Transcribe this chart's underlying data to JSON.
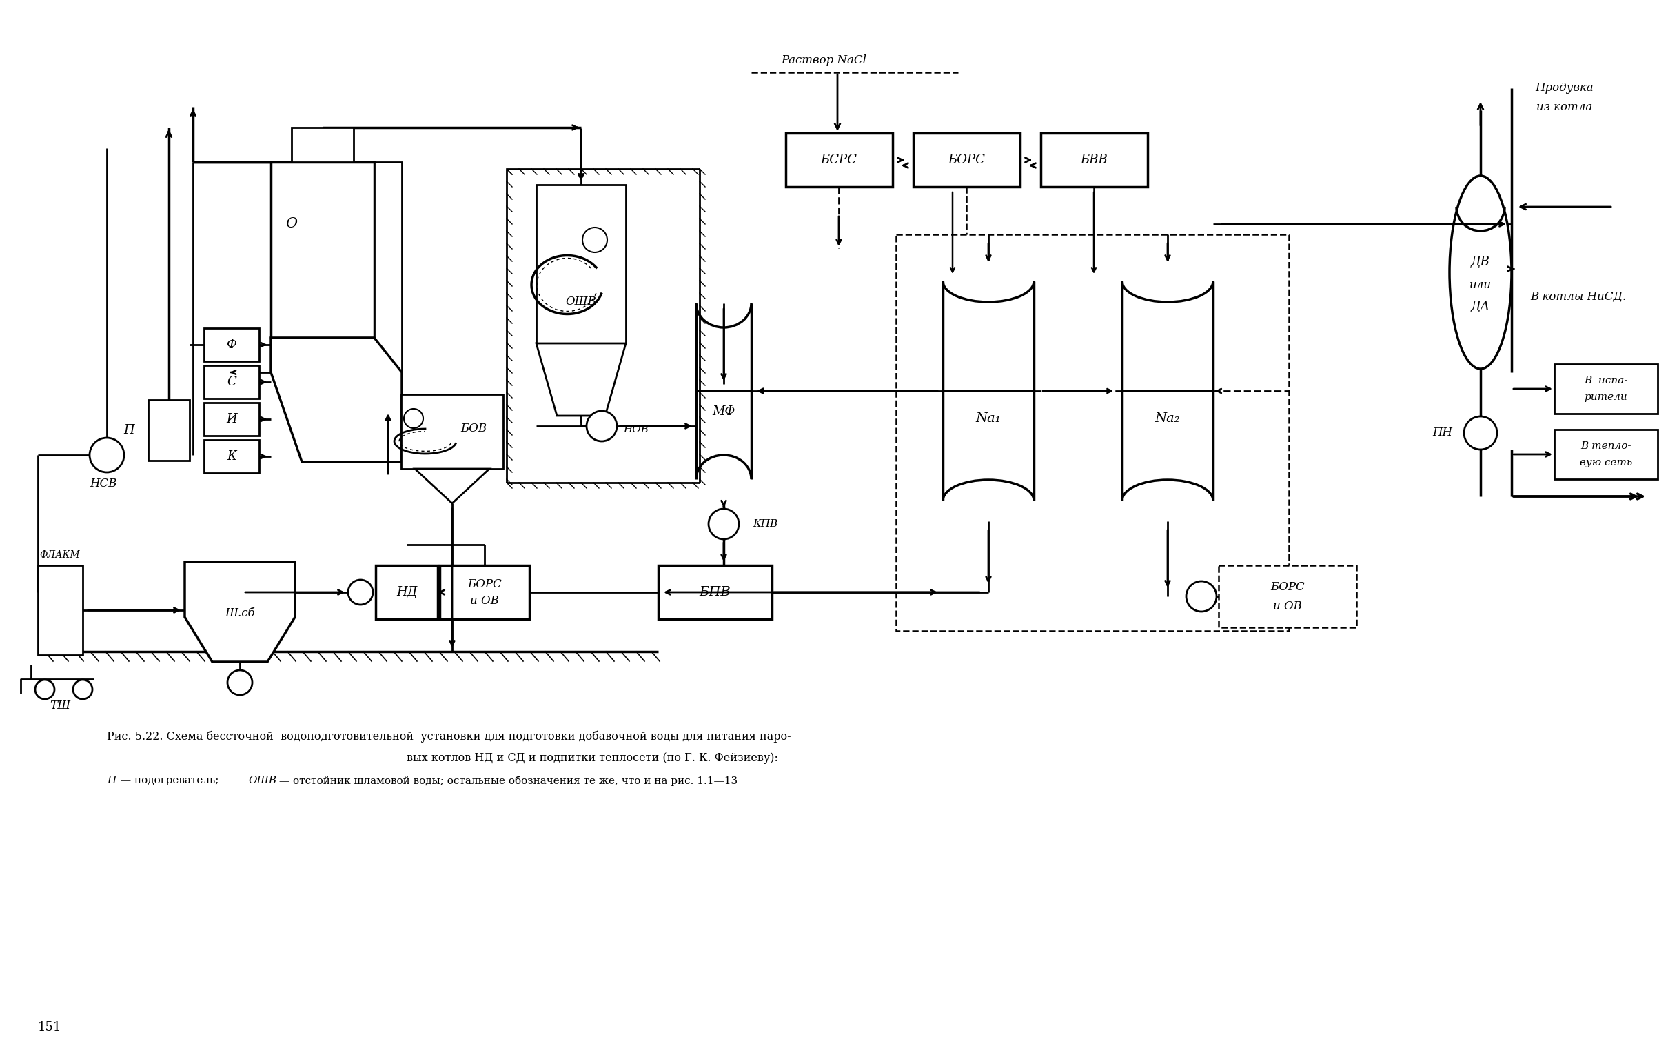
{
  "title_line1": "Рис. 5.22. Схема бессточной  водоподготовительной  установки для подготовки добавочной воды для питания паро-",
  "title_line2": "вых котлов НД и СД и подпитки теплосети (по Г. К. Фейзиеву):",
  "caption_p": "П",
  "caption_after_p": " — подогреватель; ",
  "caption_oshv": "ОШВ",
  "caption_after_oshv": " — отстойник шламовой воды; остальные обозначения те же, что и на рис. 1.1—13",
  "page_num": "151",
  "nacl_label": "Раствор NaCl",
  "produvka_line1": "Продувка",
  "produvka_line2": "из котла",
  "kotly_label": "В котлы НиСД.",
  "isp_line1": "В  испа-",
  "isp_line2": "рители",
  "tepl_line1": "В тепло-",
  "tepl_line2": "вую сеть",
  "bg_color": "#ffffff"
}
